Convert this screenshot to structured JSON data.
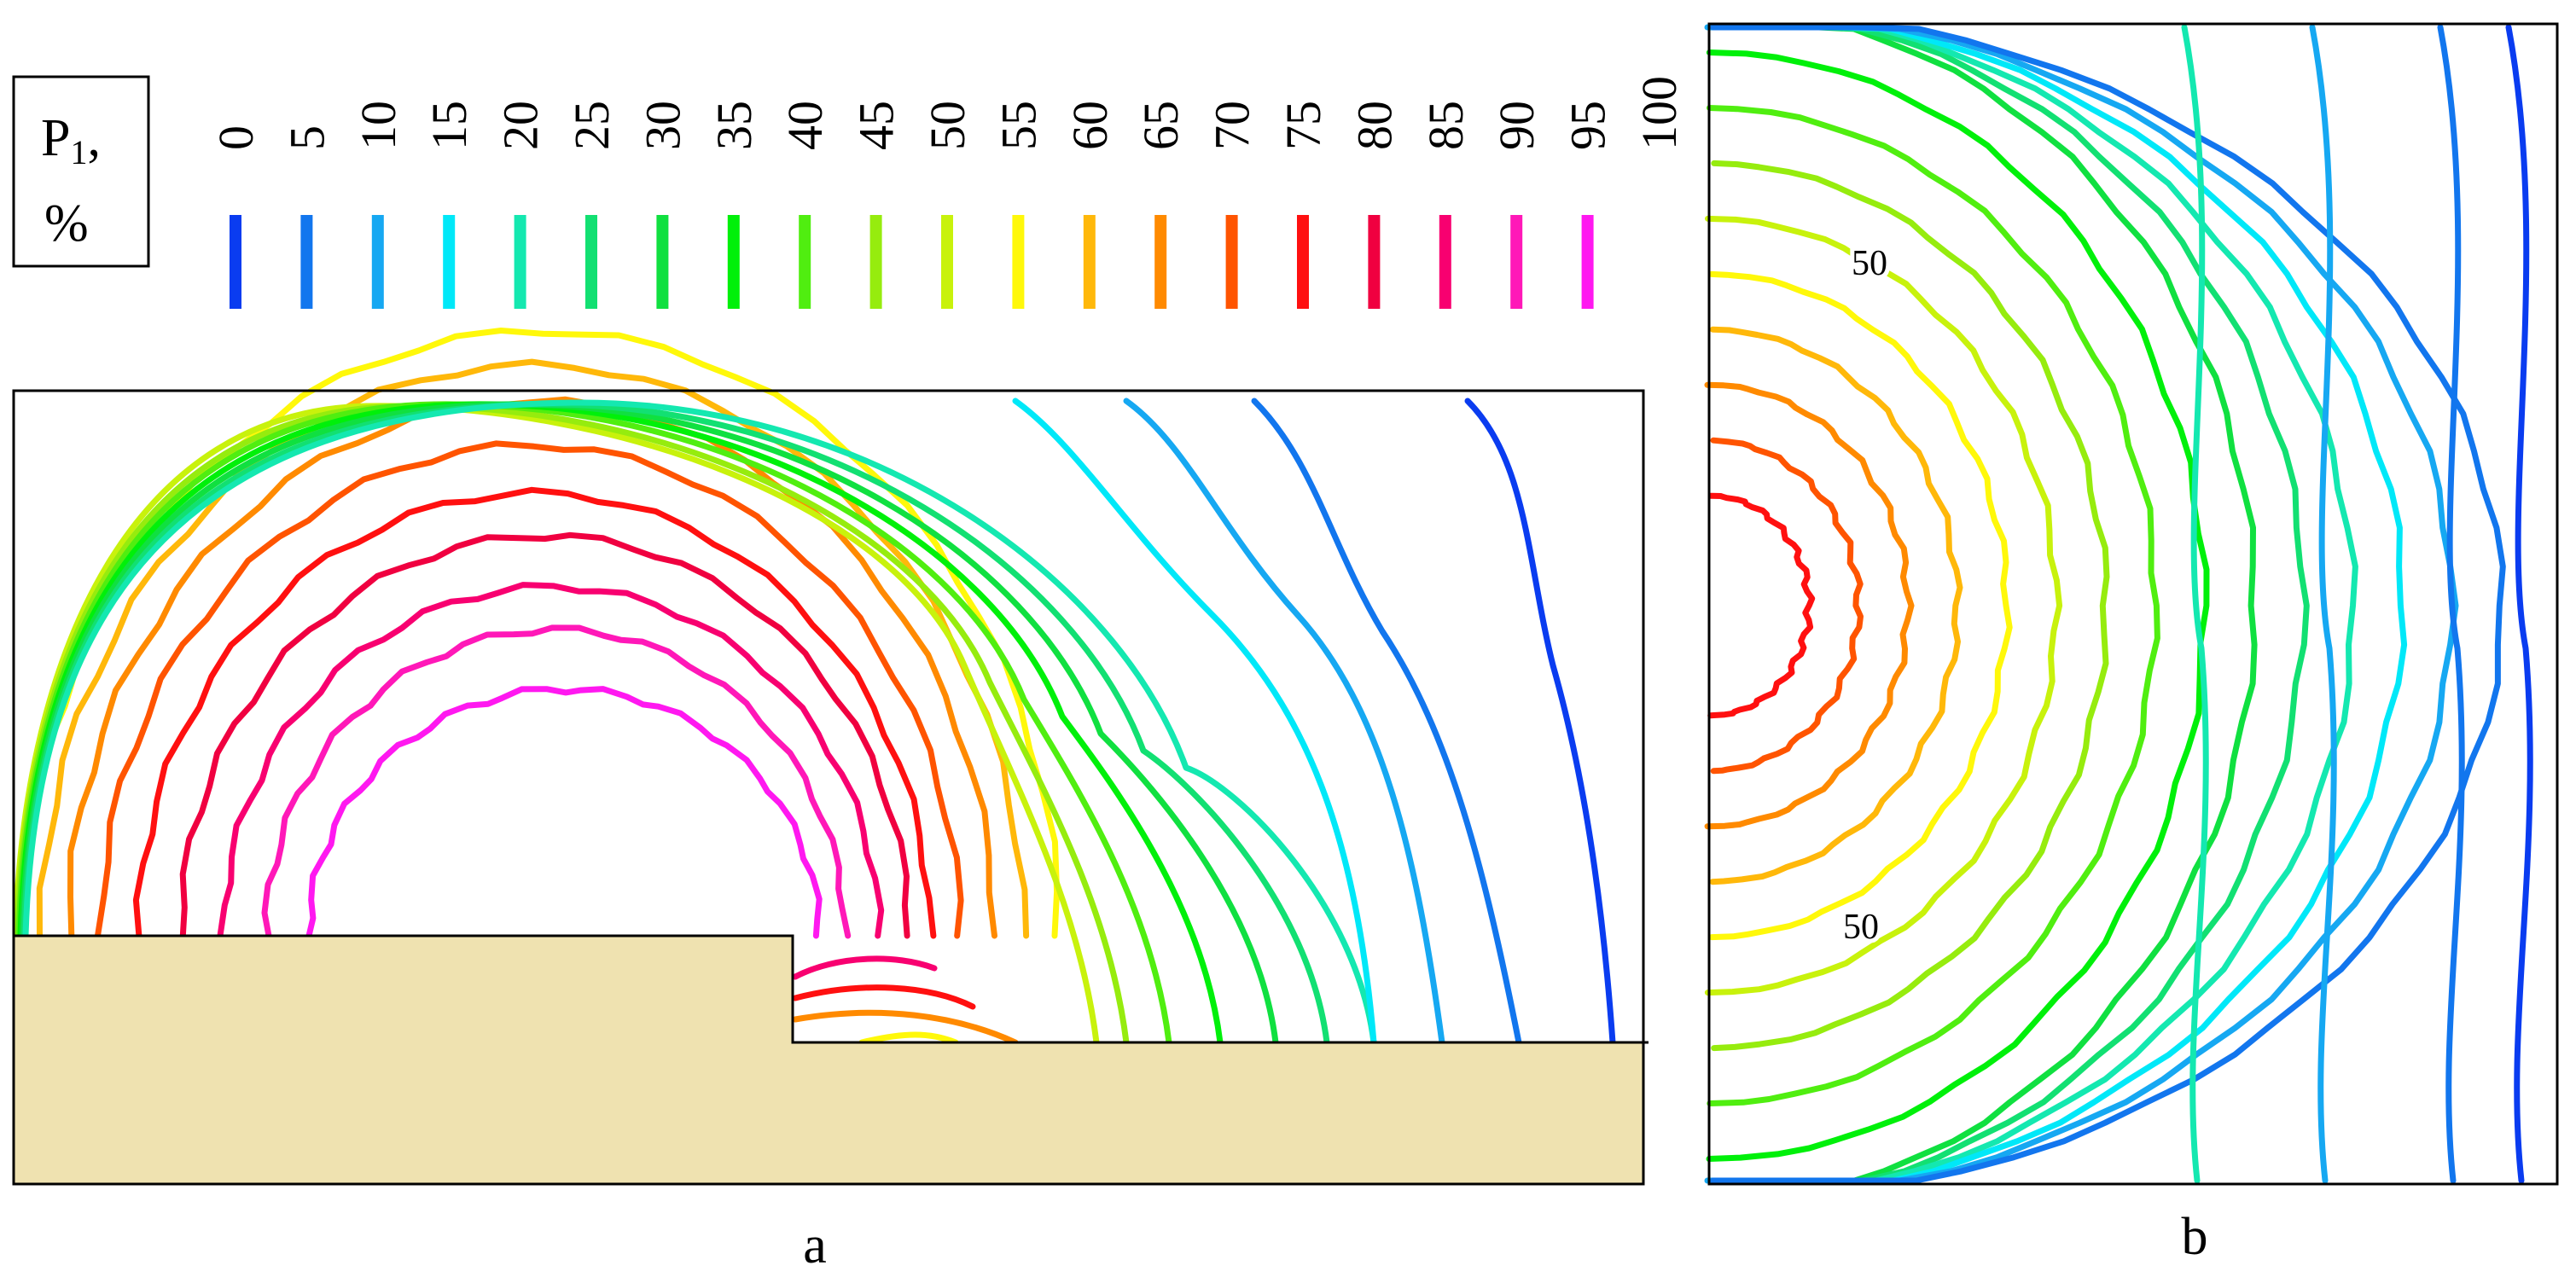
{
  "legend": {
    "title_main": "P",
    "title_sub": "1",
    "title_comma": ",",
    "unit": "%",
    "levels": [
      {
        "value": "0",
        "color": "#0a3cf0"
      },
      {
        "value": "5",
        "color": "#1276ee"
      },
      {
        "value": "10",
        "color": "#16a8f2"
      },
      {
        "value": "15",
        "color": "#00e8f8"
      },
      {
        "value": "20",
        "color": "#14e8b0"
      },
      {
        "value": "25",
        "color": "#12e072"
      },
      {
        "value": "30",
        "color": "#10e040"
      },
      {
        "value": "35",
        "color": "#00f00a"
      },
      {
        "value": "40",
        "color": "#50ee10"
      },
      {
        "value": "45",
        "color": "#96ec0e"
      },
      {
        "value": "50",
        "color": "#c8f20c"
      },
      {
        "value": "55",
        "color": "#fff80a"
      },
      {
        "value": "60",
        "color": "#ffb80a"
      },
      {
        "value": "65",
        "color": "#ff8a00"
      },
      {
        "value": "70",
        "color": "#ff5400"
      },
      {
        "value": "75",
        "color": "#ff1010"
      },
      {
        "value": "80",
        "color": "#f00040"
      },
      {
        "value": "85",
        "color": "#f80070"
      },
      {
        "value": "90",
        "color": "#ff18b8"
      },
      {
        "value": "95",
        "color": "#ff18f0"
      }
    ],
    "last_level": "100"
  },
  "panel_a": {
    "caption": "a",
    "solid_color": "#efe2b0"
  },
  "panel_b": {
    "caption": "b",
    "contour_label_top": "50",
    "contour_label_bottom": "50"
  }
}
